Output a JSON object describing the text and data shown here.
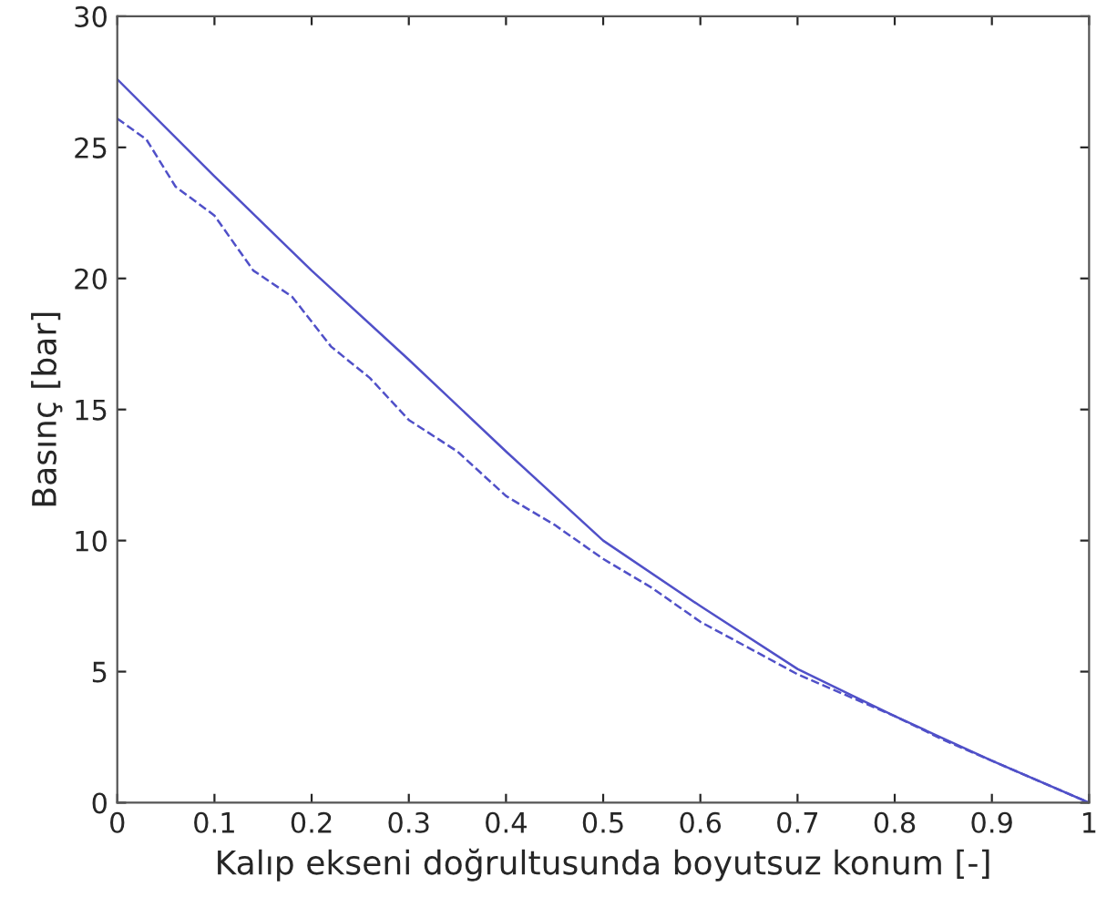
{
  "chart_data": {
    "type": "line",
    "xlabel": "Kalıp ekseni doğrultusunda boyutsuz konum [-]",
    "ylabel": "Basınç [bar]",
    "xlim": [
      0,
      1
    ],
    "xticks": [
      0,
      0.1,
      0.2,
      0.3,
      0.4,
      0.5,
      0.6,
      0.7,
      0.8,
      0.9,
      1
    ],
    "ylim": [
      0,
      30
    ],
    "yticks": [
      0,
      5,
      10,
      15,
      20,
      25,
      30
    ],
    "grid": false,
    "series": [
      {
        "color": "#5050c8",
        "line_style": "solid",
        "x": [
          0,
          0.1,
          0.2,
          0.3,
          0.4,
          0.5,
          0.6,
          0.7,
          0.8,
          0.9,
          1
        ],
        "values": [
          27.6,
          23.9,
          20.3,
          16.9,
          13.4,
          10.0,
          7.5,
          5.1,
          3.3,
          1.6,
          0
        ]
      },
      {
        "color": "#5050c8",
        "line_style": "dashed",
        "x": [
          0,
          0.03,
          0.06,
          0.1,
          0.14,
          0.18,
          0.22,
          0.26,
          0.3,
          0.35,
          0.4,
          0.45,
          0.5,
          0.55,
          0.6,
          0.65,
          0.7,
          0.75,
          0.8,
          0.85,
          0.9,
          0.95,
          1
        ],
        "values": [
          26.1,
          25.3,
          23.5,
          22.4,
          20.3,
          19.3,
          17.4,
          16.2,
          14.6,
          13.4,
          11.7,
          10.6,
          9.3,
          8.2,
          6.9,
          5.9,
          4.9,
          4.1,
          3.3,
          2.4,
          1.6,
          0.8,
          0
        ]
      }
    ]
  }
}
